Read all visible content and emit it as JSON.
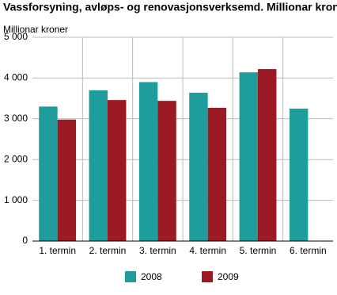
{
  "chart_data": {
    "type": "bar",
    "title": "Vassforsyning, avløps- og renovasjonsverksemd. Millionar kroner",
    "y_label": "Millionar kroner",
    "categories": [
      "1. termin",
      "2. termin",
      "3. termin",
      "4. termin",
      "5. termin",
      "6. termin"
    ],
    "series": [
      {
        "name": "2008",
        "color": "#1f9c9c",
        "values": [
          3300,
          3700,
          3900,
          3640,
          4140,
          3250
        ]
      },
      {
        "name": "2009",
        "color": "#9b1a24",
        "values": [
          2980,
          3460,
          3440,
          3270,
          4220,
          null
        ]
      }
    ],
    "ylim": [
      0,
      5000
    ],
    "yticks": [
      0,
      {
        "value": 1000,
        "label": "1 000"
      },
      {
        "value": 2000,
        "label": "2 000"
      },
      {
        "value": 3000,
        "label": "3 000"
      },
      {
        "value": 4000,
        "label": "4 000"
      },
      {
        "value": 5000,
        "label": "5 000"
      }
    ],
    "grid": true
  }
}
